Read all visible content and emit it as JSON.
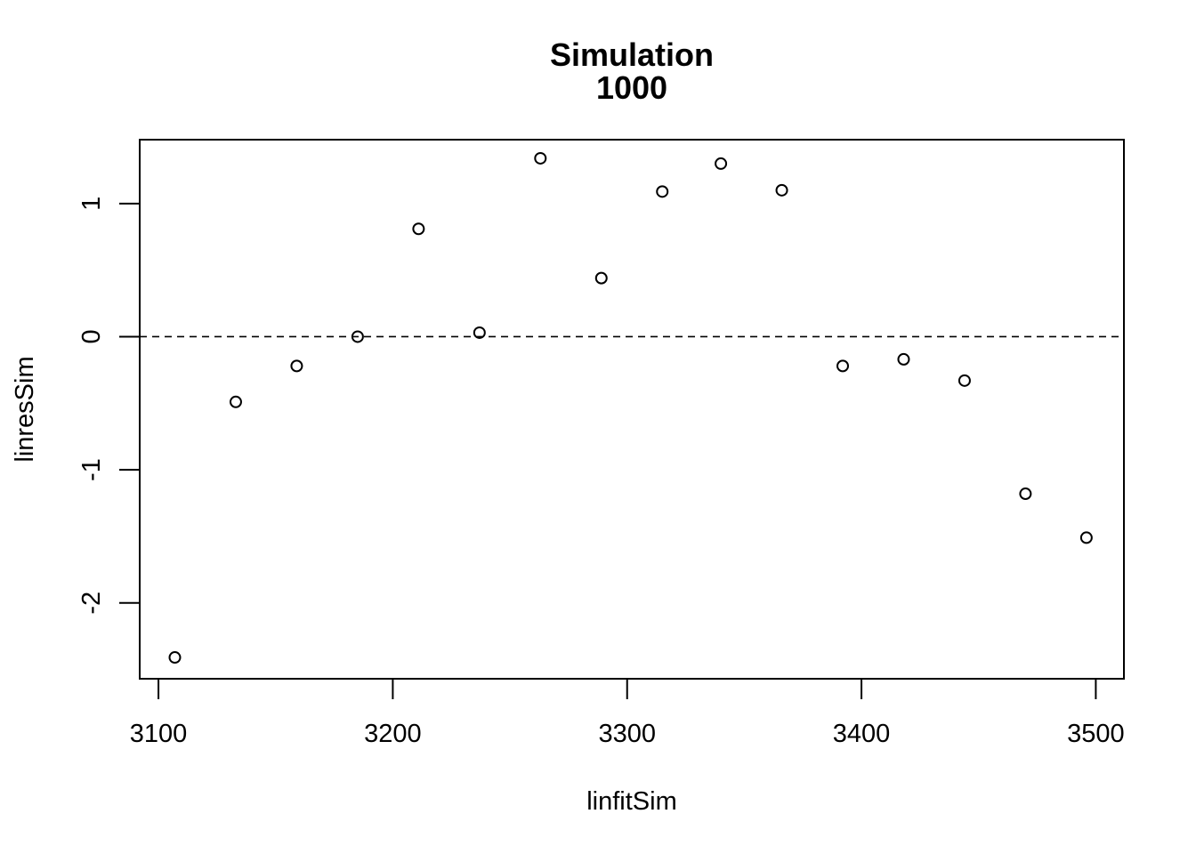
{
  "chart_data": {
    "type": "scatter",
    "title_lines": [
      "Simulation",
      "1000"
    ],
    "xlabel": "linfitSim",
    "ylabel": "linresSim",
    "xlim": [
      3092,
      3512
    ],
    "ylim": [
      -2.57,
      1.48
    ],
    "x_ticks": [
      3100,
      3200,
      3300,
      3400,
      3500
    ],
    "x_tick_labels": [
      "3100",
      "3200",
      "3300",
      "3400",
      "3500"
    ],
    "y_ticks": [
      -2,
      -1,
      0,
      1
    ],
    "y_tick_labels": [
      "-2",
      "-1",
      "0",
      "1"
    ],
    "reference_line": {
      "y": 0,
      "style": "dashed"
    },
    "grid": false,
    "points": [
      {
        "x": 3107,
        "y": -2.41
      },
      {
        "x": 3133,
        "y": -0.49
      },
      {
        "x": 3159,
        "y": -0.22
      },
      {
        "x": 3185,
        "y": 0.0
      },
      {
        "x": 3211,
        "y": 0.81
      },
      {
        "x": 3237,
        "y": 0.03
      },
      {
        "x": 3263,
        "y": 1.34
      },
      {
        "x": 3289,
        "y": 0.44
      },
      {
        "x": 3315,
        "y": 1.09
      },
      {
        "x": 3340,
        "y": 1.3
      },
      {
        "x": 3366,
        "y": 1.1
      },
      {
        "x": 3392,
        "y": -0.22
      },
      {
        "x": 3418,
        "y": -0.17
      },
      {
        "x": 3444,
        "y": -0.33
      },
      {
        "x": 3470,
        "y": -1.18
      },
      {
        "x": 3496,
        "y": -1.51
      }
    ]
  }
}
